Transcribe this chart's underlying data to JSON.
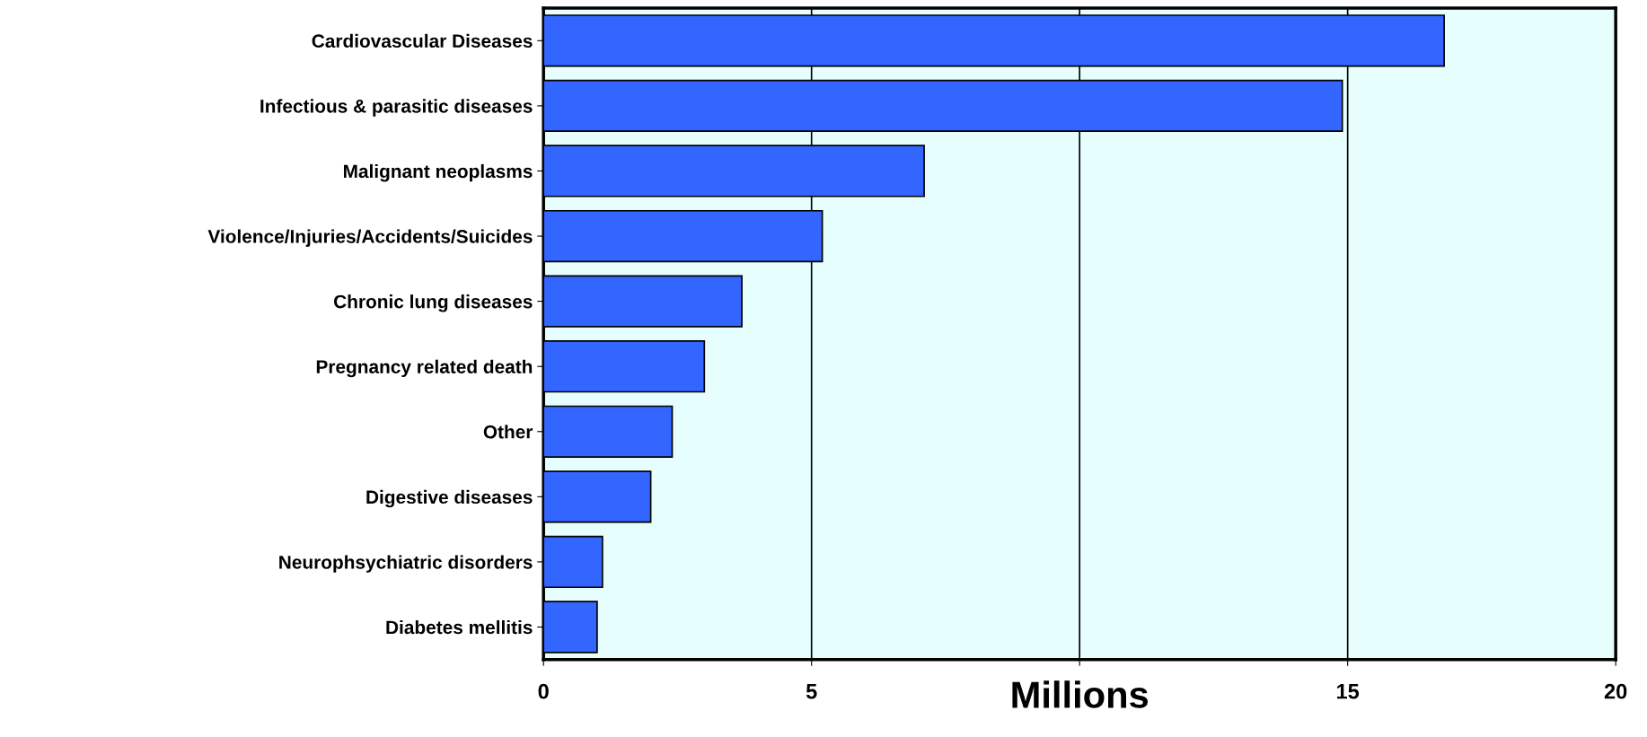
{
  "chart_data": {
    "type": "bar",
    "orientation": "horizontal",
    "xlabel": "Millions",
    "categories": [
      "Cardiovascular Diseases",
      "Infectious & parasitic diseases",
      "Malignant neoplasms",
      "Violence/Injuries/Accidents/Suicides",
      "Chronic lung diseases",
      "Pregnancy related death",
      "Other",
      "Digestive diseases",
      "Neurophsychiatric disorders",
      "Diabetes mellitis"
    ],
    "values": [
      16.8,
      14.9,
      7.1,
      5.2,
      3.7,
      3.0,
      2.4,
      2.0,
      1.1,
      1.0
    ],
    "color": "#3366ff",
    "xlim": [
      0,
      20
    ],
    "xticks": [
      0,
      5,
      {
        "value": 10,
        "label": null
      },
      15,
      20
    ],
    "grid": "x"
  }
}
